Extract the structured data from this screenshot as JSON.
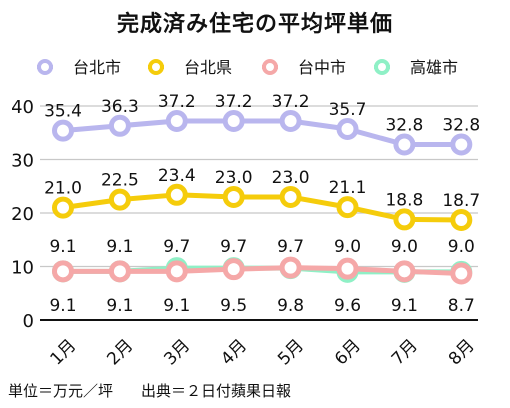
{
  "chart_data": {
    "type": "line",
    "title": "完成済み住宅の平均坪単価",
    "categories": [
      "1月",
      "2月",
      "3月",
      "4月",
      "5月",
      "6月",
      "7月",
      "8月"
    ],
    "ylim": [
      0,
      40
    ],
    "yticks": [
      "0",
      "10",
      "20",
      "30",
      "40"
    ],
    "grid": true,
    "legend_position": "top",
    "series": [
      {
        "name": "台北市",
        "color": "#b9b6ee",
        "values": [
          35.4,
          36.3,
          37.2,
          37.2,
          37.2,
          35.7,
          32.8,
          32.8
        ],
        "labels": [
          "35.4",
          "36.3",
          "37.2",
          "37.2",
          "37.2",
          "35.7",
          "32.8",
          "32.8"
        ]
      },
      {
        "name": "台北県",
        "color": "#f5cc0b",
        "values": [
          21.0,
          22.5,
          23.4,
          23.0,
          23.0,
          21.1,
          18.8,
          18.7
        ],
        "labels": [
          "21.0",
          "22.5",
          "23.4",
          "23.0",
          "23.0",
          "21.1",
          "18.8",
          "18.7"
        ]
      },
      {
        "name": "台中市",
        "color": "#f5a8a8",
        "values": [
          9.1,
          9.1,
          9.1,
          9.5,
          9.8,
          9.6,
          9.1,
          8.7
        ],
        "labels": [
          "9.1",
          "9.1",
          "9.1",
          "9.5",
          "9.8",
          "9.6",
          "9.1",
          "8.7"
        ]
      },
      {
        "name": "高雄市",
        "color": "#8ff0c6",
        "values": [
          9.1,
          9.1,
          9.7,
          9.7,
          9.7,
          9.0,
          9.0,
          9.0
        ],
        "labels": [
          "9.1",
          "9.1",
          "9.7",
          "9.7",
          "9.7",
          "9.0",
          "9.0",
          "9.0"
        ]
      }
    ]
  },
  "footer": {
    "unit": "単位＝万元／坪",
    "source": "出典＝２日付蘋果日報"
  }
}
